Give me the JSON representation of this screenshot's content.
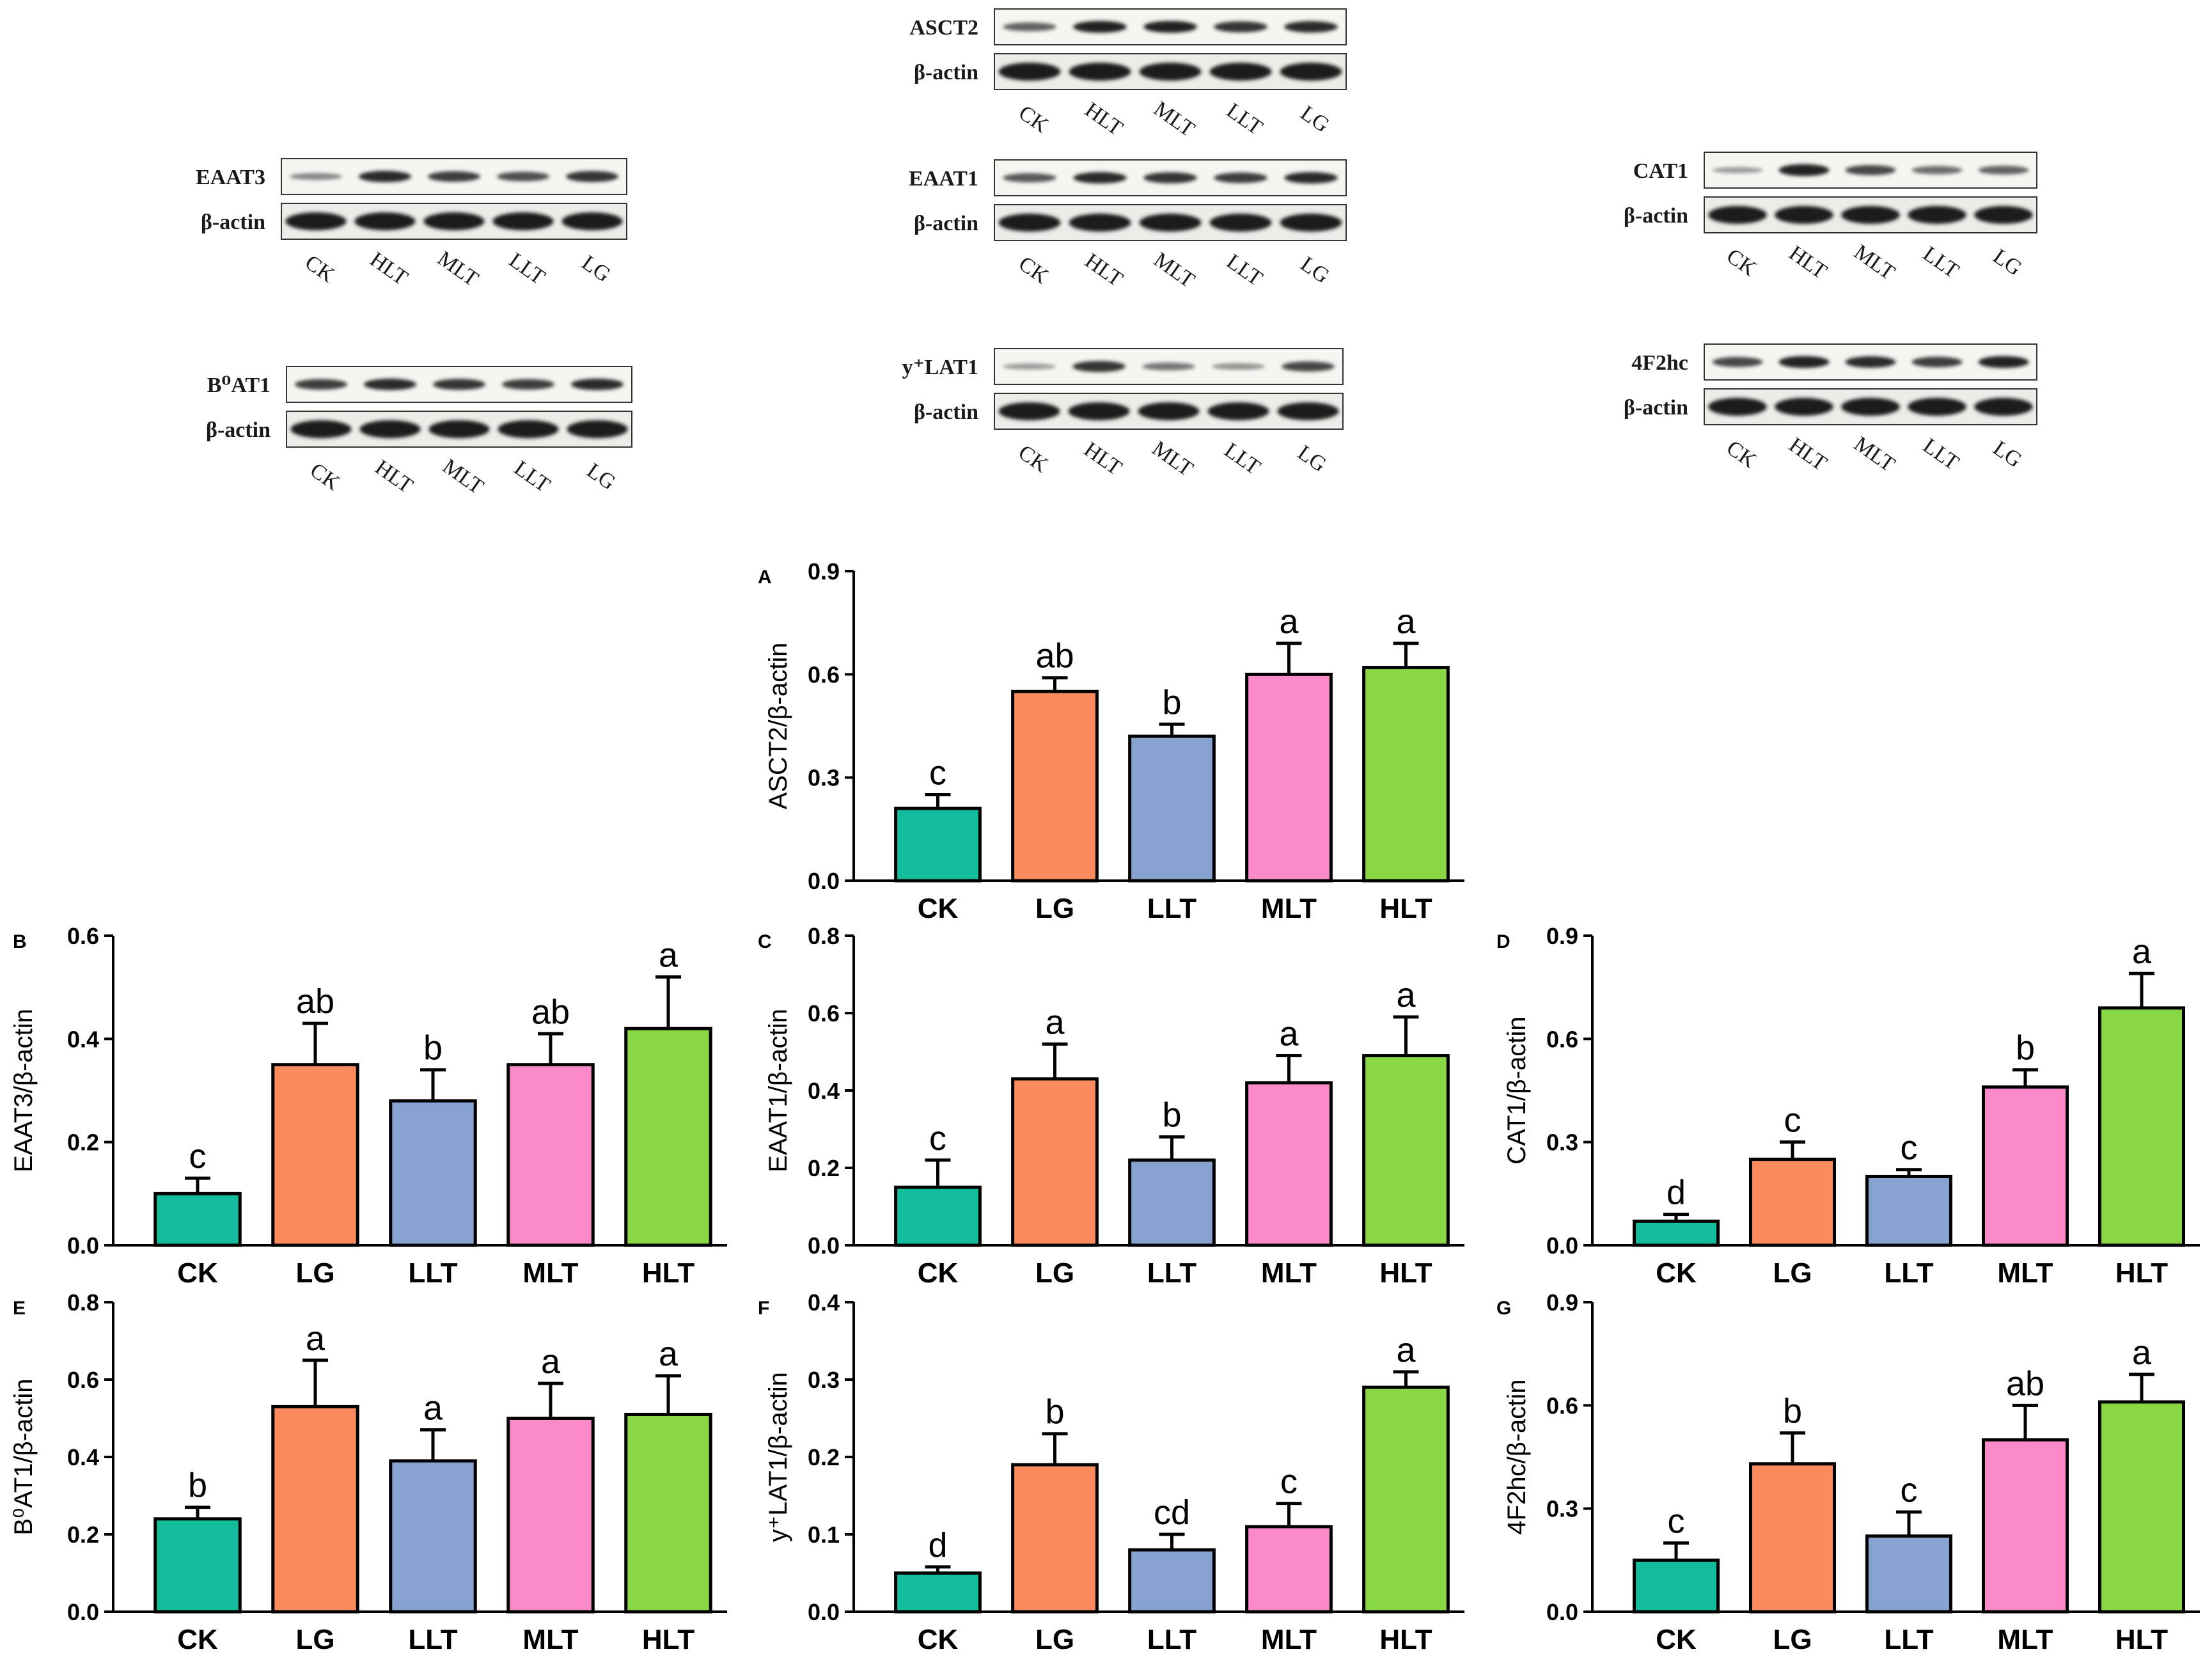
{
  "figure": {
    "lanes": [
      "CK",
      "HLT",
      "MLT",
      "LLT",
      "LG"
    ],
    "loading_control": "β-actin",
    "blots": [
      {
        "protein": "EAAT3",
        "band_intensity": [
          0.35,
          0.85,
          0.75,
          0.65,
          0.8
        ]
      },
      {
        "protein": "B⁰AT1",
        "band_intensity": [
          0.75,
          0.85,
          0.8,
          0.75,
          0.85
        ]
      },
      {
        "protein": "ASCT2",
        "band_intensity": [
          0.55,
          0.9,
          0.9,
          0.8,
          0.85
        ]
      },
      {
        "protein": "EAAT1",
        "band_intensity": [
          0.6,
          0.85,
          0.8,
          0.75,
          0.85
        ]
      },
      {
        "protein": "y⁺LAT1",
        "band_intensity": [
          0.25,
          0.8,
          0.45,
          0.3,
          0.7
        ]
      },
      {
        "protein": "CAT1",
        "band_intensity": [
          0.25,
          0.9,
          0.7,
          0.5,
          0.55
        ]
      },
      {
        "protein": "4F2hc",
        "band_intensity": [
          0.7,
          0.9,
          0.85,
          0.75,
          0.9
        ]
      }
    ],
    "colors": {
      "CK": "#13BD9B",
      "LG": "#FB8A5D",
      "LLT": "#86A2CF",
      "MLT": "#FA8BC8",
      "HLT": "#88D846",
      "axis": "#000000"
    }
  },
  "chart_data": [
    {
      "panel": "A",
      "type": "bar",
      "ylabel": "ASCT2/β-actin",
      "categories": [
        "CK",
        "LG",
        "LLT",
        "MLT",
        "HLT"
      ],
      "values": [
        0.21,
        0.55,
        0.42,
        0.6,
        0.62
      ],
      "errors": [
        0.04,
        0.04,
        0.035,
        0.09,
        0.07
      ],
      "significance": [
        "c",
        "ab",
        "b",
        "a",
        "a"
      ],
      "ylim": [
        0,
        0.9
      ],
      "yticks": [
        "0.0",
        "0.3",
        "0.6",
        "0.9"
      ]
    },
    {
      "panel": "B",
      "type": "bar",
      "ylabel": "EAAT3/β-actin",
      "categories": [
        "CK",
        "LG",
        "LLT",
        "MLT",
        "HLT"
      ],
      "values": [
        0.1,
        0.35,
        0.28,
        0.35,
        0.42
      ],
      "errors": [
        0.03,
        0.08,
        0.06,
        0.06,
        0.1
      ],
      "significance": [
        "c",
        "ab",
        "b",
        "ab",
        "a"
      ],
      "ylim": [
        0,
        0.6
      ],
      "yticks": [
        "0.0",
        "0.2",
        "0.4",
        "0.6"
      ]
    },
    {
      "panel": "C",
      "type": "bar",
      "ylabel": "EAAT1/β-actin",
      "categories": [
        "CK",
        "LG",
        "LLT",
        "MLT",
        "HLT"
      ],
      "values": [
        0.15,
        0.43,
        0.22,
        0.42,
        0.49
      ],
      "errors": [
        0.07,
        0.09,
        0.06,
        0.07,
        0.1
      ],
      "significance": [
        "c",
        "a",
        "b",
        "a",
        "a"
      ],
      "ylim": [
        0,
        0.8
      ],
      "yticks": [
        "0.0",
        "0.2",
        "0.4",
        "0.6",
        "0.8"
      ]
    },
    {
      "panel": "D",
      "type": "bar",
      "ylabel": "CAT1/β-actin",
      "categories": [
        "CK",
        "LG",
        "LLT",
        "MLT",
        "HLT"
      ],
      "values": [
        0.07,
        0.25,
        0.2,
        0.46,
        0.69
      ],
      "errors": [
        0.02,
        0.05,
        0.02,
        0.05,
        0.1
      ],
      "significance": [
        "d",
        "c",
        "c",
        "b",
        "a"
      ],
      "ylim": [
        0,
        0.9
      ],
      "yticks": [
        "0.0",
        "0.3",
        "0.6",
        "0.9"
      ]
    },
    {
      "panel": "E",
      "type": "bar",
      "ylabel": "B⁰AT1/β-actin",
      "categories": [
        "CK",
        "LG",
        "LLT",
        "MLT",
        "HLT"
      ],
      "values": [
        0.24,
        0.53,
        0.39,
        0.5,
        0.51
      ],
      "errors": [
        0.03,
        0.12,
        0.08,
        0.09,
        0.1
      ],
      "significance": [
        "b",
        "a",
        "a",
        "a",
        "a"
      ],
      "ylim": [
        0,
        0.8
      ],
      "yticks": [
        "0.0",
        "0.2",
        "0.4",
        "0.6",
        "0.8"
      ]
    },
    {
      "panel": "F",
      "type": "bar",
      "ylabel": "y⁺LAT1/β-actin",
      "categories": [
        "CK",
        "LG",
        "LLT",
        "MLT",
        "HLT"
      ],
      "values": [
        0.05,
        0.19,
        0.08,
        0.11,
        0.29
      ],
      "errors": [
        0.008,
        0.04,
        0.02,
        0.03,
        0.02
      ],
      "significance": [
        "d",
        "b",
        "cd",
        "c",
        "a"
      ],
      "ylim": [
        0,
        0.4
      ],
      "yticks": [
        "0.0",
        "0.1",
        "0.2",
        "0.3",
        "0.4"
      ]
    },
    {
      "panel": "G",
      "type": "bar",
      "ylabel": "4F2hc/β-actin",
      "categories": [
        "CK",
        "LG",
        "LLT",
        "MLT",
        "HLT"
      ],
      "values": [
        0.15,
        0.43,
        0.22,
        0.5,
        0.61
      ],
      "errors": [
        0.05,
        0.09,
        0.07,
        0.1,
        0.08
      ],
      "significance": [
        "c",
        "b",
        "c",
        "ab",
        "a"
      ],
      "ylim": [
        0,
        0.9
      ],
      "yticks": [
        "0.0",
        "0.3",
        "0.6",
        "0.9"
      ]
    }
  ]
}
